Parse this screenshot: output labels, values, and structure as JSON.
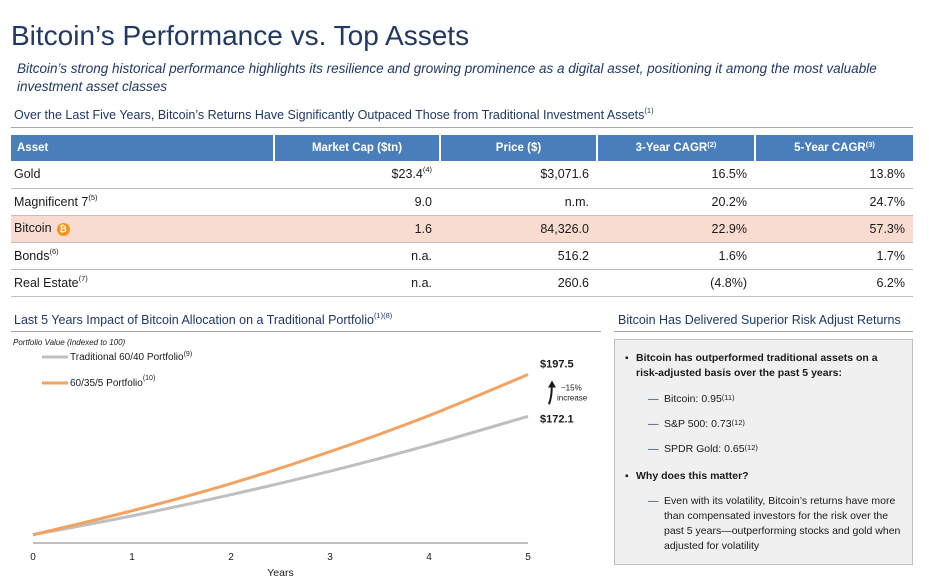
{
  "header": {
    "title": "Bitcoin’s Performance vs. Top Assets",
    "subtitle": "Bitcoin’s strong historical performance highlights its resilience and growing prominence as a digital asset, positioning it among the most valuable investment asset classes"
  },
  "table_section": {
    "heading": "Over the Last Five Years, Bitcoin’s Returns Have Significantly Outpaced Those from Traditional Investment Assets",
    "heading_note": "(1)",
    "columns": [
      {
        "label": "Asset",
        "note": ""
      },
      {
        "label": "Market Cap ($tn)",
        "note": ""
      },
      {
        "label": "Price ($)",
        "note": ""
      },
      {
        "label": "3-Year CAGR",
        "note": "(2)"
      },
      {
        "label": "5-Year CAGR",
        "note": "(3)"
      }
    ],
    "rows": [
      {
        "asset": "Gold",
        "asset_note": "",
        "market_cap": "$23.4",
        "market_cap_note": "(4)",
        "price": "$3,071.6",
        "cagr3": "16.5%",
        "cagr5": "13.8%"
      },
      {
        "asset": "Magnificent 7",
        "asset_note": "(5)",
        "market_cap": "9.0",
        "market_cap_note": "",
        "price": "n.m.",
        "cagr3": "20.2%",
        "cagr5": "24.7%"
      },
      {
        "asset": "Bitcoin",
        "asset_note": "",
        "market_cap": "1.6",
        "market_cap_note": "",
        "price": "84,326.0",
        "cagr3": "22.9%",
        "cagr5": "57.3%"
      },
      {
        "asset": "Bonds",
        "asset_note": "(6)",
        "market_cap": "n.a.",
        "market_cap_note": "",
        "price": "516.2",
        "cagr3": "1.6%",
        "cagr5": "1.7%"
      },
      {
        "asset": "Real Estate",
        "asset_note": "(7)",
        "market_cap": "n.a.",
        "market_cap_note": "",
        "price": "260.6",
        "cagr3": "(4.8%)",
        "cagr5": "6.2%"
      }
    ],
    "bitcoin_icon": "bitcoin-icon",
    "highlight_color": "#f9dcd0",
    "header_color": "#4a7ebb"
  },
  "chart_section": {
    "heading": "Last 5 Years Impact of Bitcoin Allocation on a Traditional Portfolio",
    "heading_note": "(1)(8)"
  },
  "chart_data": {
    "type": "line",
    "title": "Last 5 Years Impact of Bitcoin Allocation on a Traditional Portfolio",
    "ylabel": "Portfolio Value (Indexed to 100)",
    "xlabel": "Years",
    "x": [
      0,
      1,
      2,
      3,
      4,
      5
    ],
    "xlim": [
      0,
      5
    ],
    "ylim": [
      95,
      210
    ],
    "grid": false,
    "legend_position": "top-left",
    "series": [
      {
        "name": "Traditional 60/40 Portfolio",
        "note": "(9)",
        "color": "#bfbfbf",
        "values": [
          100,
          111.5,
          124.4,
          138.7,
          154.6,
          172.1
        ]
      },
      {
        "name": "60/35/5 Portfolio",
        "note": "(10)",
        "color": "#f4a261",
        "values": [
          100,
          114.6,
          131.2,
          150.6,
          172.5,
          197.5
        ]
      }
    ],
    "end_labels": [
      "$197.5",
      "$172.1"
    ],
    "annotation": {
      "line1": "~15%",
      "line2": "increase"
    }
  },
  "risk_section": {
    "heading": "Bitcoin Has Delivered Superior Risk Adjust Returns",
    "bullet1": "Bitcoin has outperformed traditional assets on a risk-adjusted basis over the past 5 years:",
    "sub_items": [
      {
        "label": "Bitcoin: 0.95",
        "note": "(11)"
      },
      {
        "label": "S&P 500: 0.73",
        "note": "(12)"
      },
      {
        "label": "SPDR Gold: 0.65",
        "note": "(12)"
      }
    ],
    "bullet2": "Why does this matter?",
    "detail": "Even with its volatility, Bitcoin’s returns have more than compensated investors for the risk over the past 5 years—outperforming stocks and gold when adjusted for volatility"
  }
}
